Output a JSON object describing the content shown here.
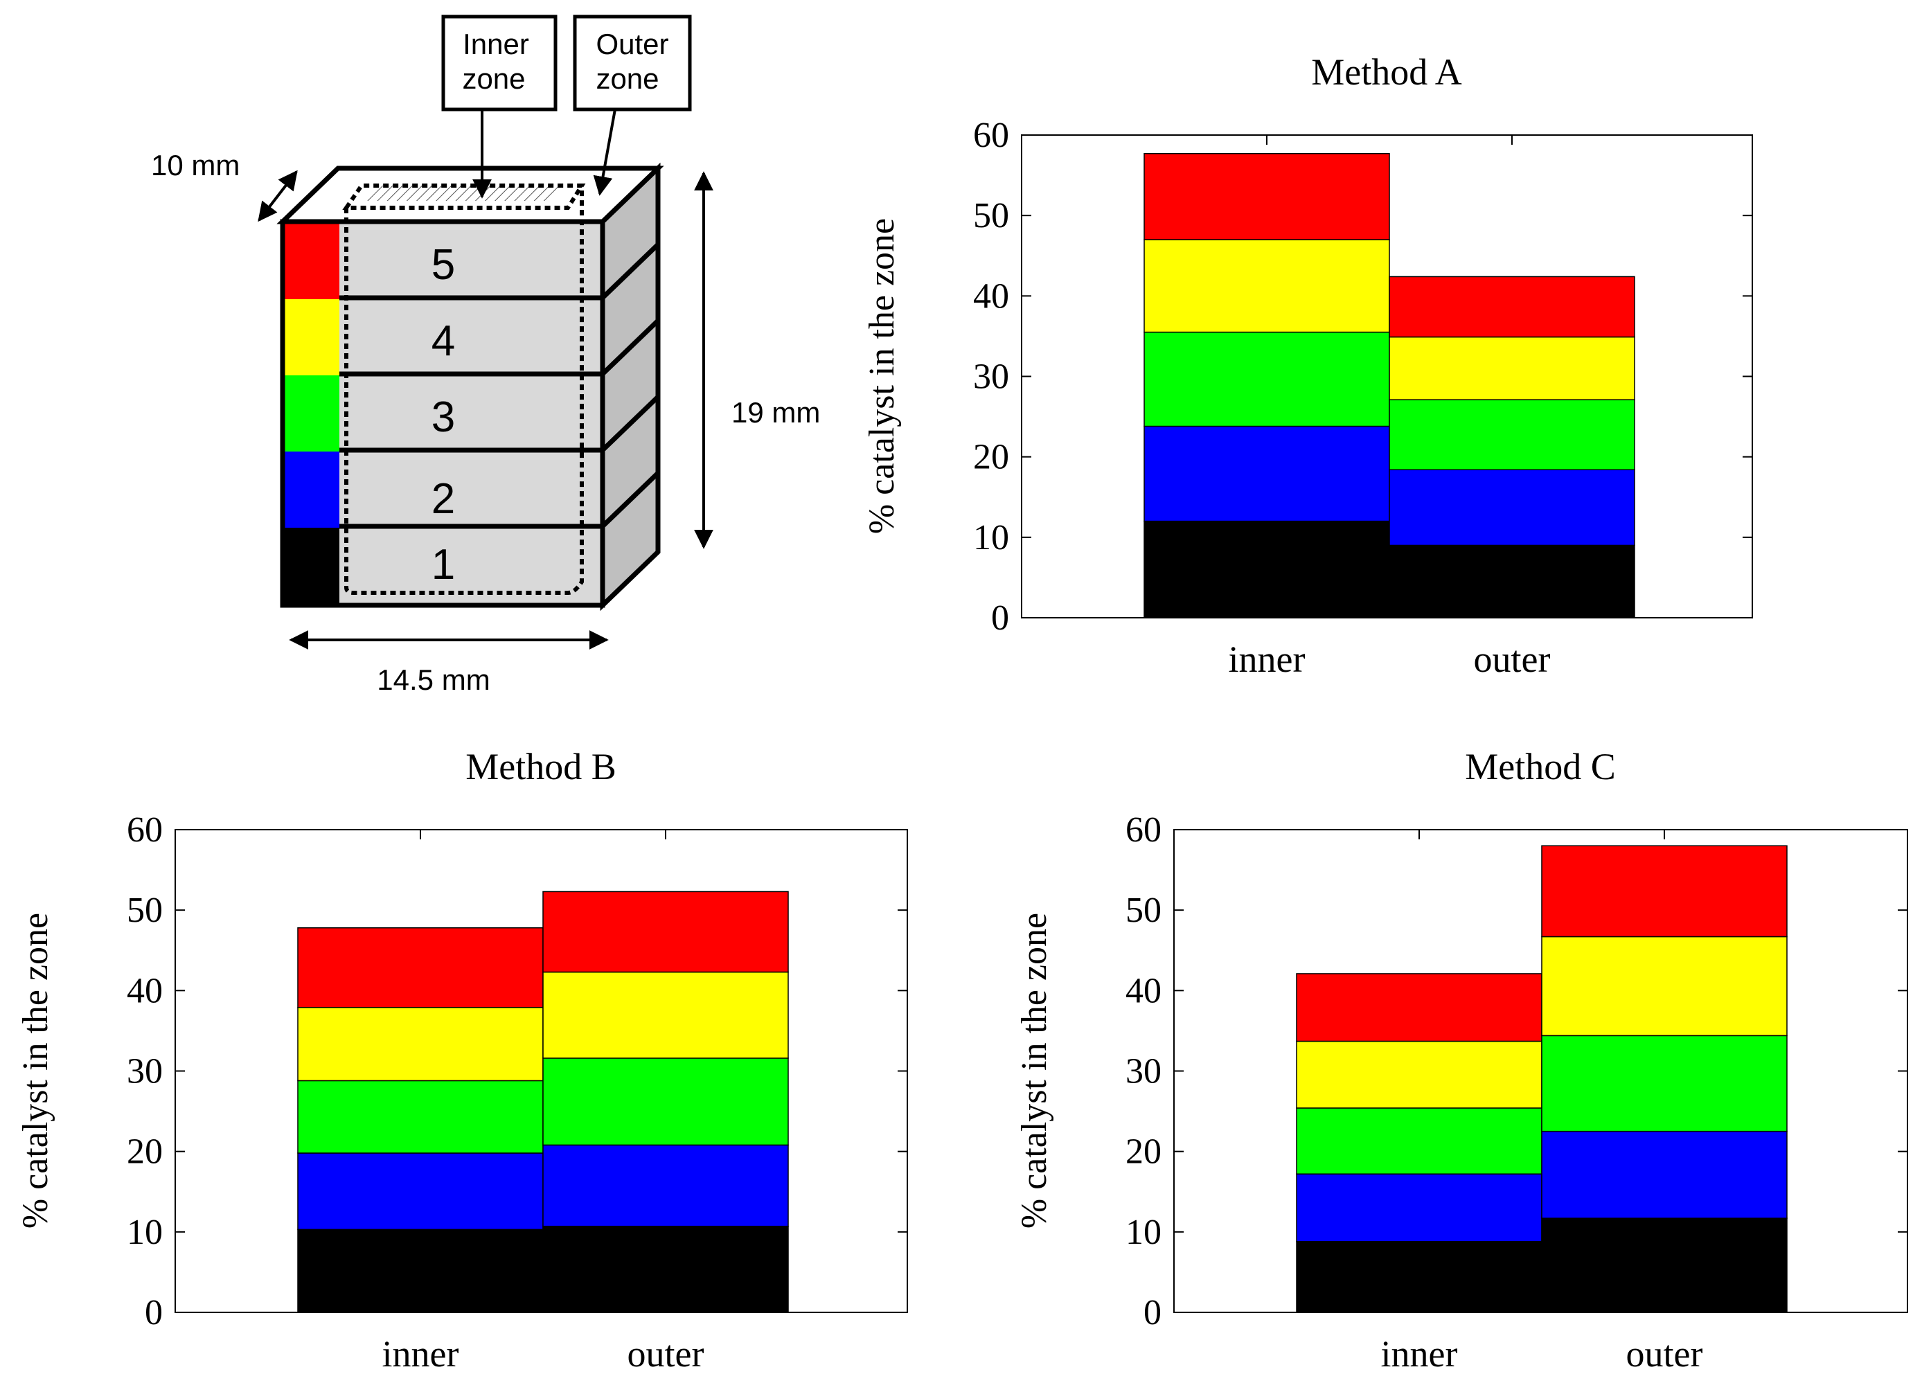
{
  "colors": {
    "layer1": "#000000",
    "layer2": "#0000ff",
    "layer3": "#00ff00",
    "layer4": "#ffff00",
    "layer5": "#ff0000",
    "block_face": "#d9d9d9",
    "block_side": "#bfbfbf"
  },
  "diagram": {
    "inner_zone_label": [
      "Inner",
      "zone"
    ],
    "outer_zone_label": [
      "Outer",
      "zone"
    ],
    "depth_label": "10 mm",
    "height_label": "19 mm",
    "width_label": "14.5 mm",
    "layers": [
      "5",
      "4",
      "3",
      "2",
      "1"
    ]
  },
  "chart_data": [
    {
      "type": "bar",
      "stacked": true,
      "title": "Method A",
      "xlabel": "",
      "ylabel": "% catalyst in the zone",
      "categories": [
        "inner",
        "outer"
      ],
      "ylim": [
        0,
        60
      ],
      "yticks": [
        0,
        10,
        20,
        30,
        40,
        50,
        60
      ],
      "series": [
        {
          "name": "layer 1",
          "values": [
            12.0,
            9.0
          ]
        },
        {
          "name": "layer 2",
          "values": [
            11.8,
            9.4
          ]
        },
        {
          "name": "layer 3",
          "values": [
            11.7,
            8.7
          ]
        },
        {
          "name": "layer 4",
          "values": [
            11.5,
            7.8
          ]
        },
        {
          "name": "layer 5",
          "values": [
            10.7,
            7.5
          ]
        }
      ]
    },
    {
      "type": "bar",
      "stacked": true,
      "title": "Method B",
      "xlabel": "",
      "ylabel": "% catalyst in the zone",
      "categories": [
        "inner",
        "outer"
      ],
      "ylim": [
        0,
        60
      ],
      "yticks": [
        0,
        10,
        20,
        30,
        40,
        50,
        60
      ],
      "series": [
        {
          "name": "layer 1",
          "values": [
            10.3,
            10.7
          ]
        },
        {
          "name": "layer 2",
          "values": [
            9.5,
            10.1
          ]
        },
        {
          "name": "layer 3",
          "values": [
            9.0,
            10.8
          ]
        },
        {
          "name": "layer 4",
          "values": [
            9.1,
            10.7
          ]
        },
        {
          "name": "layer 5",
          "values": [
            9.9,
            10.0
          ]
        }
      ]
    },
    {
      "type": "bar",
      "stacked": true,
      "title": "Method C",
      "xlabel": "",
      "ylabel": "% catalyst in the zone",
      "categories": [
        "inner",
        "outer"
      ],
      "ylim": [
        0,
        60
      ],
      "yticks": [
        0,
        10,
        20,
        30,
        40,
        50,
        60
      ],
      "series": [
        {
          "name": "layer 1",
          "values": [
            8.8,
            11.7
          ]
        },
        {
          "name": "layer 2",
          "values": [
            8.4,
            10.8
          ]
        },
        {
          "name": "layer 3",
          "values": [
            8.2,
            11.9
          ]
        },
        {
          "name": "layer 4",
          "values": [
            8.3,
            12.3
          ]
        },
        {
          "name": "layer 5",
          "values": [
            8.4,
            11.3
          ]
        }
      ]
    }
  ]
}
